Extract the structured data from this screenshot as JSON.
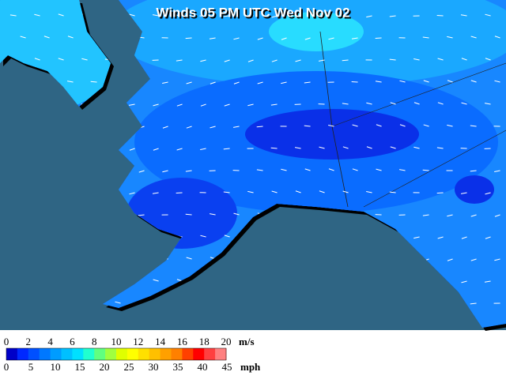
{
  "title": "Winds 05 PM UTC Wed Nov 02",
  "legend": {
    "ms_labels": [
      0,
      2,
      4,
      6,
      8,
      10,
      12,
      14,
      16,
      18,
      20
    ],
    "ms_unit": "m/s",
    "mph_labels": [
      0,
      5,
      10,
      15,
      20,
      25,
      30,
      35,
      40,
      45
    ],
    "mph_unit": "mph",
    "colors": [
      "#0000c8",
      "#0028ff",
      "#0050ff",
      "#0078ff",
      "#009cff",
      "#00c0ff",
      "#00e0ff",
      "#20ffd0",
      "#60ff80",
      "#a0ff40",
      "#e0ff00",
      "#ffff00",
      "#ffe000",
      "#ffc000",
      "#ffa000",
      "#ff8000",
      "#ff4000",
      "#ff0000",
      "#ff4040",
      "#ff8080"
    ]
  }
}
